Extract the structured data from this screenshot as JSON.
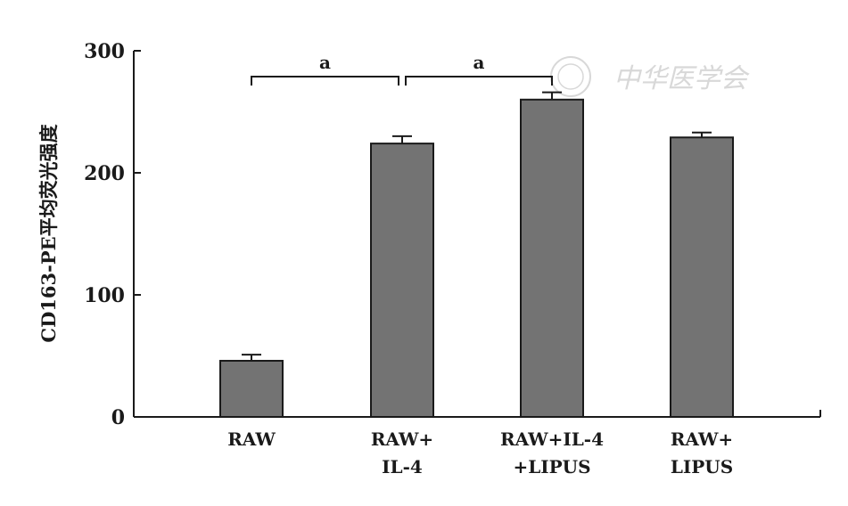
{
  "chart_data": {
    "type": "bar",
    "title": "",
    "xlabel": "",
    "ylabel": "CD163-PE平均荧光强度",
    "ylim": [
      0,
      300
    ],
    "yticks": [
      0,
      100,
      200,
      300
    ],
    "grid": false,
    "categories": [
      [
        "RAW"
      ],
      [
        "RAW+",
        "IL-4"
      ],
      [
        "RAW+IL-4",
        "+LIPUS"
      ],
      [
        "RAW+",
        "LIPUS"
      ]
    ],
    "values": [
      46,
      224,
      260,
      229
    ],
    "errors": [
      5,
      6,
      6,
      4
    ],
    "bar_color": "#737373",
    "significance": [
      {
        "from": 0,
        "to": 1,
        "label": "a"
      },
      {
        "from": 1,
        "to": 2,
        "label": "a"
      }
    ]
  },
  "watermark": {
    "text": "中华医学会",
    "icon": "seal-icon"
  }
}
